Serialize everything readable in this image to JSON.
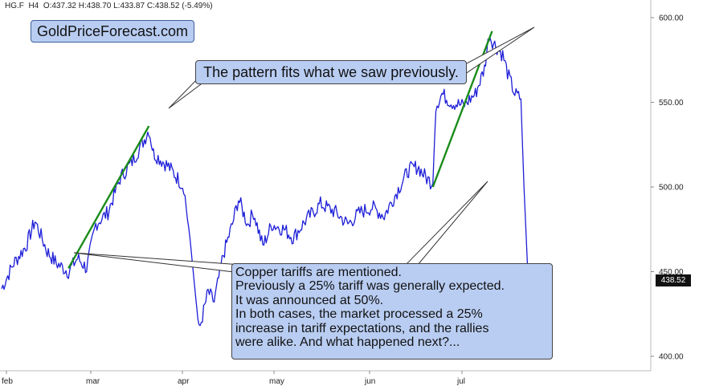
{
  "header": {
    "symbol": "HG.F",
    "interval": "H4",
    "open": "O:437.32",
    "high": "H:438.70",
    "low": "L:433.87",
    "close": "C:438.52",
    "change": "(-5.49%)"
  },
  "brand": "GoldPriceForecast.com",
  "callouts": {
    "top": "The pattern fits what we saw previously.",
    "bottom_lines": [
      "Copper tariffs are mentioned.",
      "Previously a 25% tariff was generally expected.",
      "It was announced at 50%.",
      "In both cases, the market processed a 25%",
      "increase in tariff expectations, and the rallies",
      "were alike. And what happened next?..."
    ]
  },
  "last_price": "438.52",
  "colors": {
    "price": "#1d1ed8",
    "trend": "#1a8c1a",
    "callout_bg": "#b9cdf2"
  },
  "chart_data": {
    "type": "line",
    "interval": "H4",
    "ylim": [
      394,
      602
    ],
    "y_ticks": [
      "600.00",
      "550.00",
      "500.00",
      "450.00",
      "400.00"
    ],
    "x_tick_labels": [
      "feb",
      "mar",
      "apr",
      "may",
      "jun",
      "jul"
    ],
    "price_keypoints": [
      [
        0.0,
        440
      ],
      [
        0.4,
        455
      ],
      [
        0.8,
        465
      ],
      [
        1.1,
        480
      ],
      [
        1.5,
        462
      ],
      [
        1.8,
        455
      ],
      [
        2.2,
        450
      ],
      [
        2.5,
        458
      ],
      [
        2.8,
        452
      ],
      [
        3.1,
        478
      ],
      [
        3.5,
        485
      ],
      [
        3.9,
        505
      ],
      [
        4.3,
        515
      ],
      [
        4.7,
        528
      ],
      [
        4.85,
        534
      ],
      [
        5.0,
        520
      ],
      [
        5.5,
        512
      ],
      [
        5.8,
        505
      ],
      [
        6.0,
        500
      ],
      [
        6.2,
        470
      ],
      [
        6.5,
        415
      ],
      [
        6.8,
        438
      ],
      [
        7.0,
        432
      ],
      [
        7.3,
        460
      ],
      [
        7.6,
        478
      ],
      [
        7.8,
        493
      ],
      [
        8.1,
        478
      ],
      [
        8.3,
        485
      ],
      [
        8.6,
        465
      ],
      [
        8.9,
        478
      ],
      [
        9.3,
        475
      ],
      [
        9.6,
        470
      ],
      [
        10.0,
        480
      ],
      [
        10.5,
        490
      ],
      [
        11.0,
        485
      ],
      [
        11.4,
        478
      ],
      [
        11.8,
        485
      ],
      [
        12.2,
        488
      ],
      [
        12.6,
        483
      ],
      [
        13.1,
        500
      ],
      [
        13.4,
        510
      ],
      [
        13.7,
        512
      ],
      [
        14.0,
        505
      ],
      [
        14.2,
        502
      ],
      [
        14.3,
        548
      ],
      [
        14.5,
        555
      ],
      [
        14.8,
        550
      ],
      [
        15.2,
        548
      ],
      [
        15.6,
        555
      ],
      [
        15.9,
        570
      ],
      [
        16.05,
        590
      ],
      [
        16.2,
        585
      ],
      [
        16.5,
        578
      ],
      [
        16.7,
        565
      ],
      [
        16.9,
        555
      ],
      [
        17.1,
        552
      ],
      [
        17.2,
        500
      ],
      [
        17.35,
        440
      ],
      [
        17.45,
        438.52
      ]
    ],
    "trend_lines": [
      {
        "start": [
          2.2,
          452
        ],
        "end": [
          4.85,
          536
        ]
      },
      {
        "start": [
          14.2,
          500
        ],
        "end": [
          16.15,
          592
        ]
      }
    ]
  }
}
